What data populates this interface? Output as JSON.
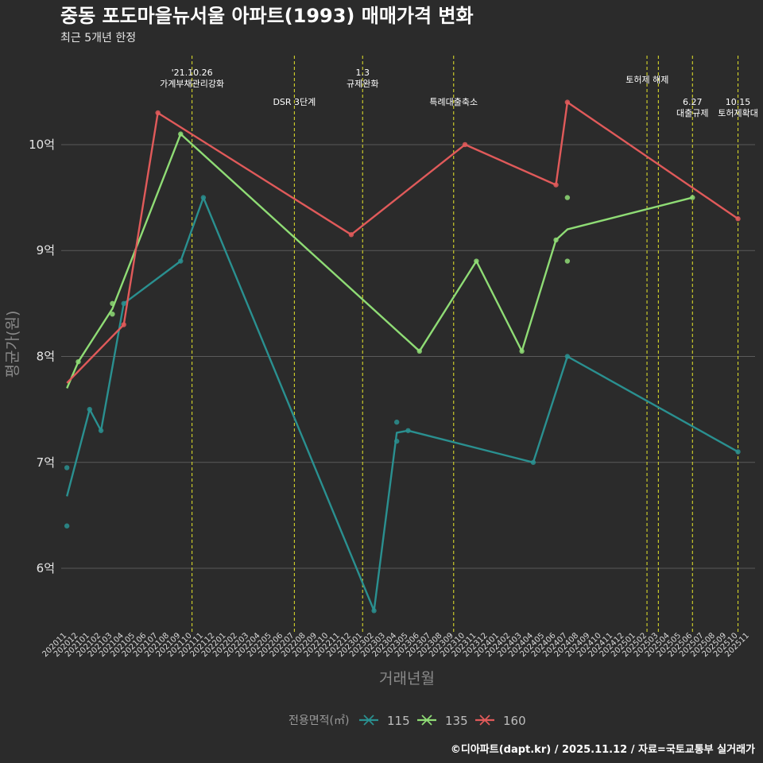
{
  "chart_data": {
    "type": "line",
    "title": "중동 포도마을뉴서울 아파트(1993) 매매가격 변화",
    "subtitle": "최근 5개년 한정",
    "xlabel": "거래년월",
    "ylabel": "평균가(원)",
    "ylim": [
      5.4,
      10.9
    ],
    "yticks": [
      6,
      7,
      8,
      9,
      10
    ],
    "ytick_labels": [
      "6억",
      "7억",
      "8억",
      "9억",
      "10억"
    ],
    "x_categories": [
      "202011",
      "202012",
      "202101",
      "202102",
      "202103",
      "202104",
      "202105",
      "202106",
      "202107",
      "202108",
      "202109",
      "202110",
      "202111",
      "202112",
      "202201",
      "202202",
      "202203",
      "202204",
      "202205",
      "202206",
      "202207",
      "202208",
      "202209",
      "202210",
      "202211",
      "202212",
      "202301",
      "202302",
      "202303",
      "202304",
      "202305",
      "202306",
      "202307",
      "202308",
      "202309",
      "202310",
      "202311",
      "202312",
      "202401",
      "202402",
      "202403",
      "202404",
      "202405",
      "202406",
      "202407",
      "202408",
      "202409",
      "202410",
      "202411",
      "202412",
      "202501",
      "202502",
      "202503",
      "202504",
      "202505",
      "202506",
      "202507",
      "202508",
      "202509",
      "202510",
      "202511"
    ],
    "legend_title": "전용면적(㎡)",
    "series": [
      {
        "name": "115",
        "color": "#2a9090",
        "line": [
          [
            "202011",
            6.68
          ],
          [
            "202101",
            7.5
          ],
          [
            "202102",
            7.3
          ],
          [
            "202104",
            8.5
          ],
          [
            "202109",
            8.9
          ],
          [
            "202111",
            9.5
          ],
          [
            "202302",
            5.6
          ],
          [
            "202304",
            7.28
          ],
          [
            "202305",
            7.3
          ],
          [
            "202404",
            7.0
          ],
          [
            "202407",
            8.0
          ],
          [
            "202510",
            7.1
          ]
        ],
        "points": [
          [
            "202011",
            6.95
          ],
          [
            "202011",
            6.4
          ],
          [
            "202101",
            7.5
          ],
          [
            "202102",
            7.3
          ],
          [
            "202104",
            8.5
          ],
          [
            "202109",
            8.9
          ],
          [
            "202111",
            9.5
          ],
          [
            "202302",
            5.6
          ],
          [
            "202304",
            7.38
          ],
          [
            "202304",
            7.2
          ],
          [
            "202305",
            7.3
          ],
          [
            "202404",
            7.0
          ],
          [
            "202407",
            8.0
          ],
          [
            "202510",
            7.1
          ]
        ]
      },
      {
        "name": "135",
        "color": "#8fdc75",
        "line": [
          [
            "202011",
            7.7
          ],
          [
            "202012",
            7.95
          ],
          [
            "202103",
            8.45
          ],
          [
            "202109",
            10.1
          ],
          [
            "202306",
            8.05
          ],
          [
            "202311",
            8.9
          ],
          [
            "202403",
            8.05
          ],
          [
            "202406",
            9.1
          ],
          [
            "202407",
            9.2
          ],
          [
            "202506",
            9.5
          ]
        ],
        "points": [
          [
            "202012",
            7.95
          ],
          [
            "202103",
            8.5
          ],
          [
            "202103",
            8.4
          ],
          [
            "202109",
            10.1
          ],
          [
            "202306",
            8.05
          ],
          [
            "202311",
            8.9
          ],
          [
            "202403",
            8.05
          ],
          [
            "202406",
            9.1
          ],
          [
            "202407",
            9.5
          ],
          [
            "202407",
            8.9
          ],
          [
            "202506",
            9.5
          ]
        ]
      },
      {
        "name": "160",
        "color": "#e05a5a",
        "line": [
          [
            "202011",
            7.75
          ],
          [
            "202104",
            8.3
          ],
          [
            "202107",
            10.3
          ],
          [
            "202212",
            9.15
          ],
          [
            "202310",
            10.0
          ],
          [
            "202406",
            9.62
          ],
          [
            "202407",
            10.4
          ],
          [
            "202510",
            9.3
          ]
        ],
        "points": [
          [
            "202104",
            8.3
          ],
          [
            "202107",
            10.3
          ],
          [
            "202212",
            9.15
          ],
          [
            "202310",
            10.0
          ],
          [
            "202406",
            9.62
          ],
          [
            "202407",
            10.4
          ],
          [
            "202510",
            9.3
          ]
        ]
      }
    ],
    "events": [
      {
        "date": "202110",
        "lines": [
          "'21.10.26",
          "가계부채관리강화"
        ],
        "level": 1
      },
      {
        "date": "202207",
        "lines": [
          "DSR 3단계"
        ],
        "level": 3
      },
      {
        "date": "202301",
        "lines": [
          "1.3",
          "규제완화"
        ],
        "level": 1
      },
      {
        "date": "202309",
        "lines": [
          "특례대출축소"
        ],
        "level": 3
      },
      {
        "date": "202502",
        "lines": [],
        "level": 0
      },
      {
        "date": "202503",
        "lines": [
          "토허제 해제"
        ],
        "level": 2
      },
      {
        "date": "202506",
        "lines": [
          "6.27",
          "대출규제"
        ],
        "level": 3
      },
      {
        "date": "202510",
        "lines": [
          "10.15",
          "토허제확대"
        ],
        "level": 3
      }
    ],
    "caption": "©디아파트(dapt.kr) / 2025.11.12 / 자료=국토교통부 실거래가"
  }
}
